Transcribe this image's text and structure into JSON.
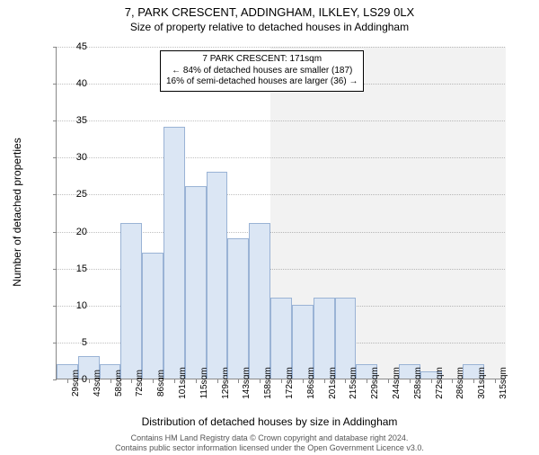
{
  "title": "7, PARK CRESCENT, ADDINGHAM, ILKLEY, LS29 0LX",
  "subtitle": "Size of property relative to detached houses in Addingham",
  "y_axis_label": "Number of detached properties",
  "x_axis_label": "Distribution of detached houses by size in Addingham",
  "chart": {
    "type": "histogram",
    "background_color": "#ffffff",
    "grid_color": "#c0c0c0",
    "axis_color": "#888888",
    "text_color": "#000000",
    "bar_fill": "#dbe6f4",
    "bar_stroke": "#9ab3d5",
    "highlight_fill": "rgba(0,0,0,0.05)",
    "ylim": [
      0,
      45
    ],
    "ytick_step": 5,
    "title_fontsize": 13,
    "label_fontsize": 12,
    "tick_fontsize": 10,
    "x_categories": [
      "29sqm",
      "43sqm",
      "58sqm",
      "72sqm",
      "86sqm",
      "101sqm",
      "115sqm",
      "129sqm",
      "143sqm",
      "158sqm",
      "172sqm",
      "186sqm",
      "201sqm",
      "215sqm",
      "229sqm",
      "244sqm",
      "258sqm",
      "272sqm",
      "286sqm",
      "301sqm",
      "315sqm"
    ],
    "values": [
      2,
      3,
      2,
      21,
      17,
      34,
      26,
      28,
      19,
      21,
      11,
      10,
      11,
      11,
      2,
      0,
      2,
      1,
      0,
      2,
      0
    ],
    "highlight_start_index": 10,
    "highlight_end_index": 21
  },
  "annotation": {
    "line1": "7 PARK CRESCENT: 171sqm",
    "line2": "← 84% of detached houses are smaller (187)",
    "line3": "16% of semi-detached houses are larger (36) →",
    "border_color": "#000000",
    "bg_color": "#ffffff",
    "fontsize": 10
  },
  "attribution": {
    "line1": "Contains HM Land Registry data © Crown copyright and database right 2024.",
    "line2": "Contains public sector information licensed under the Open Government Licence v3.0."
  }
}
